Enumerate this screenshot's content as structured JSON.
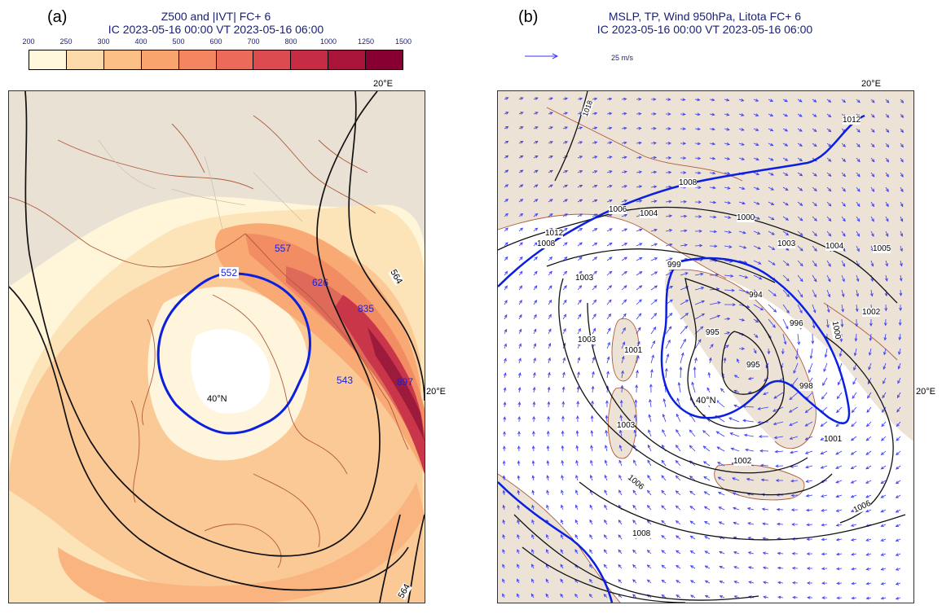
{
  "panel_a": {
    "label": "(a)",
    "title_line1": "Z500 and |IVT|   FC+ 6",
    "title_line2": "IC 2023-05-16 00:00    VT 2023-05-16 06:00",
    "colorbar": {
      "ticks": [
        "200",
        "250",
        "300",
        "400",
        "500",
        "600",
        "700",
        "800",
        "1000",
        "1250",
        "1500"
      ],
      "colors": [
        "#fff8dc",
        "#fcd9a8",
        "#fcbf86",
        "#f9a46d",
        "#f38660",
        "#ec6a5a",
        "#dc4b50",
        "#c62d45",
        "#a9153a",
        "#870031"
      ]
    },
    "lon_label": "20°E",
    "lat_label": "40°N",
    "contour_labels": [
      "552",
      "557",
      "626",
      "835",
      "897",
      "543",
      "564",
      "564"
    ]
  },
  "panel_b": {
    "label": "(b)",
    "title_line1": "MSLP, TP, Wind 950hPa, Litota   FC+ 6",
    "title_line2": "IC 2023-05-16 00:00    VT 2023-05-16 06:00",
    "ref_arrow_label": "25 m/s",
    "lon_label": "20°E",
    "lon_label_right": "20°E",
    "lat_label": "40°N",
    "isobar_labels": [
      "1018",
      "1012",
      "1008",
      "1006",
      "1004",
      "1000",
      "1012",
      "1008",
      "1003",
      "1004",
      "1005",
      "999",
      "994",
      "1003",
      "995",
      "996",
      "1000",
      "1002",
      "1001",
      "1003",
      "995",
      "998",
      "1001",
      "1003",
      "1002",
      "1006",
      "1006",
      "1008"
    ]
  }
}
